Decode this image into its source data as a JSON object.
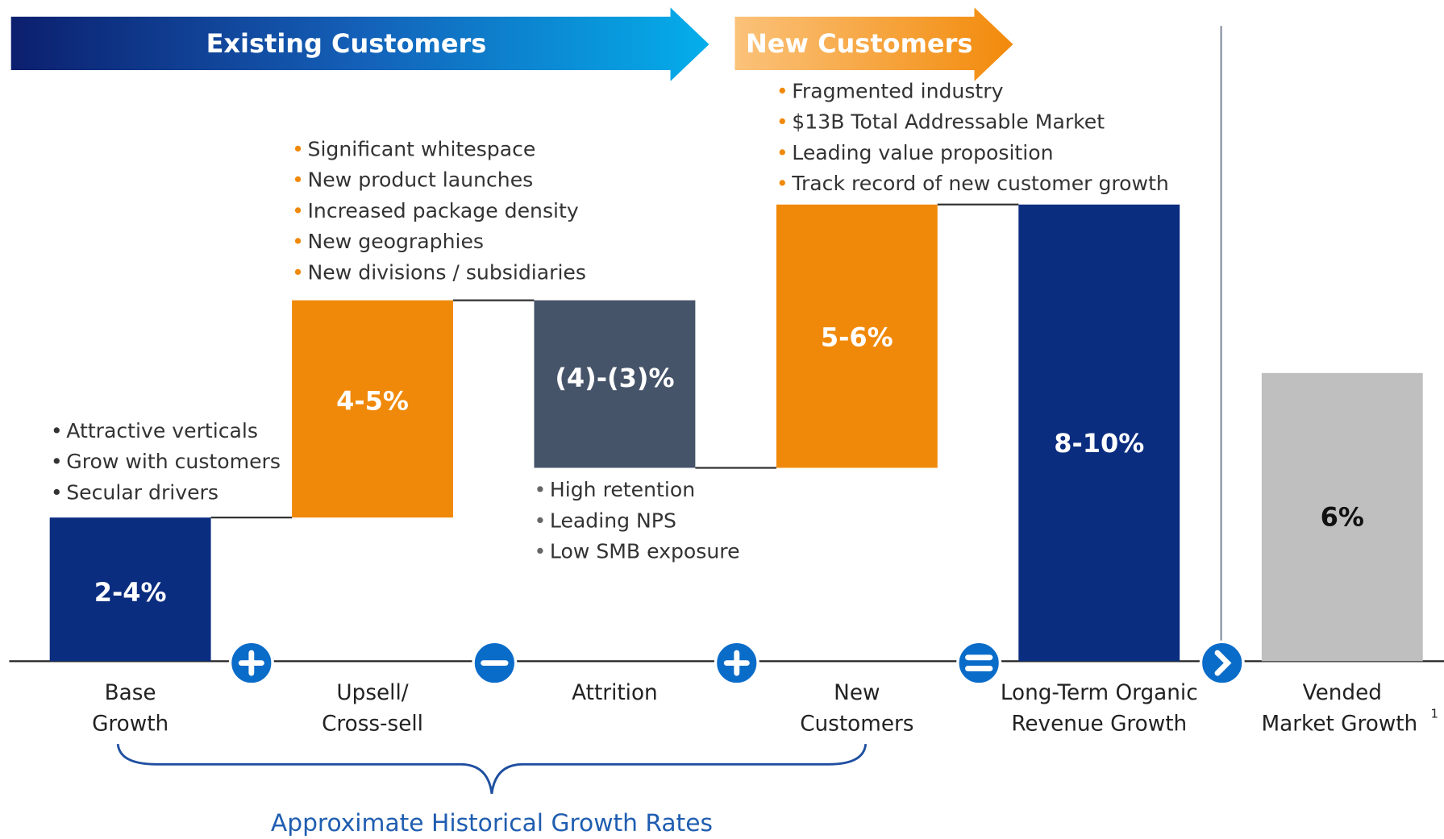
{
  "header": {
    "existing": "Existing Customers",
    "new": "New Customers"
  },
  "steps": [
    {
      "label": [
        "Base",
        "Growth"
      ],
      "value_label": "2-4%",
      "bullets": [
        "Attractive verticals",
        "Grow with customers",
        "Secular drivers"
      ]
    },
    {
      "label": [
        "Upsell/",
        "Cross-sell"
      ],
      "value_label": "4-5%",
      "bullets": [
        "Significant whitespace",
        "New product launches",
        "Increased package density",
        "New geographies",
        "New divisions / subsidiaries"
      ]
    },
    {
      "label": [
        "Attrition"
      ],
      "value_label": "(4)-(3)%",
      "bullets": [
        "High retention",
        "Leading NPS",
        "Low SMB exposure"
      ]
    },
    {
      "label": [
        "New",
        "Customers"
      ],
      "value_label": "5-6%",
      "bullets": [
        "Fragmented industry",
        "$13B Total Addressable Market",
        "Leading value proposition",
        "Track record of new customer growth"
      ]
    },
    {
      "label": [
        "Long-Term Organic",
        "Revenue Growth"
      ],
      "value_label": "8-10%",
      "bullets": []
    },
    {
      "label": [
        "Vended",
        "Market Growth"
      ],
      "footnote": "1",
      "value_label": "6%",
      "bullets": []
    }
  ],
  "brace_label": "Approximate Historical Growth Rates"
}
